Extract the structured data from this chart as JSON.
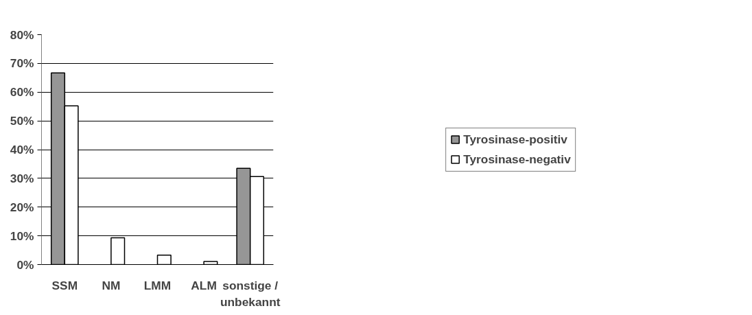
{
  "chart_data": {
    "type": "bar",
    "categories": [
      "SSM",
      "NM",
      "LMM",
      "ALM",
      "sonstige / unbekannt"
    ],
    "series": [
      {
        "name": "Tyrosinase-positiv",
        "color": "#969696",
        "values": [
          66.7,
          0,
          0,
          0,
          33.5
        ]
      },
      {
        "name": "Tyrosinase-negativ",
        "color": "#ffffff",
        "values": [
          55.2,
          9.3,
          3.3,
          1.1,
          30.6
        ]
      }
    ],
    "ylim": [
      0,
      80
    ],
    "yticks": [
      {
        "value": 0,
        "label": "0%"
      },
      {
        "value": 10,
        "label": "10%"
      },
      {
        "value": 20,
        "label": "20%"
      },
      {
        "value": 30,
        "label": "30%"
      },
      {
        "value": 40,
        "label": "40%"
      },
      {
        "value": 50,
        "label": "50%"
      },
      {
        "value": 60,
        "label": "60%"
      },
      {
        "value": 70,
        "label": "70%"
      },
      {
        "value": 80,
        "label": "80%"
      }
    ],
    "grid": "y",
    "legend": "right"
  }
}
